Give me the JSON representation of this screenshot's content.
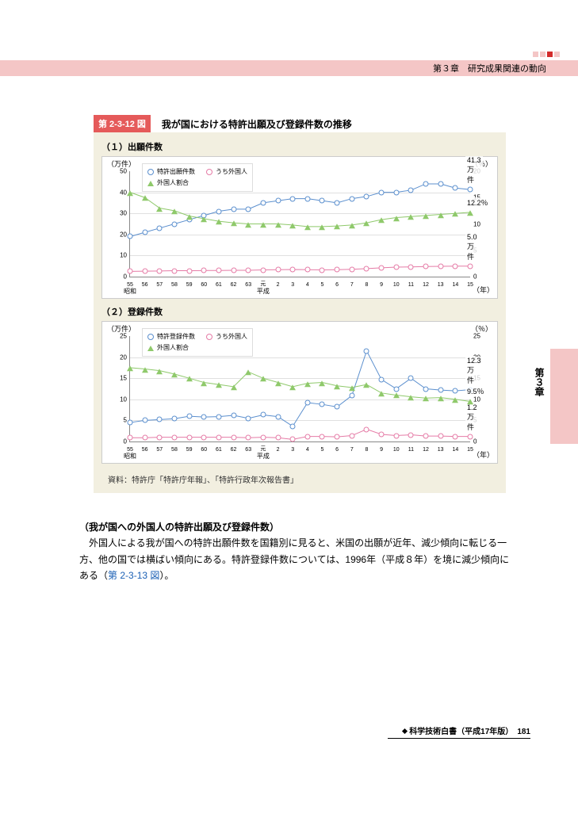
{
  "header": {
    "chapter": "第３章　研究成果関連の動向",
    "side_tab": "第３章"
  },
  "figure": {
    "number": "第 2-3-12 図",
    "title": "我が国における特許出願及び登録件数の推移",
    "bg": "#f2efe0",
    "source": "資料：特許庁「特許庁年報」、「特許行政年次報告書」",
    "x_axis": {
      "ticks": [
        "55",
        "56",
        "57",
        "58",
        "59",
        "60",
        "61",
        "62",
        "63",
        "元",
        "2",
        "3",
        "4",
        "5",
        "6",
        "7",
        "8",
        "9",
        "10",
        "11",
        "12",
        "13",
        "14",
        "15"
      ],
      "eras": [
        {
          "label": "昭和",
          "at": 0
        },
        {
          "label": "平成",
          "at": 9
        }
      ],
      "unit": "（年）"
    },
    "charts": [
      {
        "subtitle": "（１）出願件数",
        "left_unit": "（万件）",
        "right_unit": "（％）",
        "ylim_left": [
          0,
          50
        ],
        "ytick_left_step": 10,
        "ylim_right": [
          0,
          20
        ],
        "ytick_right_step": 5,
        "series": [
          {
            "name": "特許出願件数",
            "color": "#5b8fce",
            "marker": "circle",
            "axis": "left",
            "values": [
              19,
              21,
              23,
              25,
              27,
              29,
              31,
              32,
              32,
              35,
              36,
              37,
              37,
              36,
              35,
              37,
              38,
              40,
              40,
              41,
              44,
              44,
              42,
              41.3
            ],
            "end_label": "41.3万件"
          },
          {
            "name": "うち外国人",
            "color": "#e57ba6",
            "marker": "circle",
            "axis": "left",
            "values": [
              2.5,
              2.6,
              2.7,
              2.8,
              2.8,
              2.9,
              2.9,
              3,
              3,
              3.2,
              3.3,
              3.4,
              3.3,
              3.2,
              3.3,
              3.5,
              3.8,
              4.2,
              4.5,
              4.6,
              4.8,
              4.9,
              5.0,
              5.0
            ],
            "end_label": "5.0万件"
          },
          {
            "name": "外国人割合",
            "color": "#8fc96b",
            "marker": "triangle",
            "axis": "right",
            "values": [
              16,
              15,
              13,
              12.5,
              11.5,
              11,
              10.5,
              10.2,
              10,
              10,
              10,
              9.8,
              9.5,
              9.5,
              9.6,
              9.8,
              10.2,
              10.8,
              11.2,
              11.4,
              11.6,
              11.8,
              12,
              12.2
            ],
            "end_label": "12.2％"
          }
        ]
      },
      {
        "subtitle": "（２）登録件数",
        "left_unit": "（万件）",
        "right_unit": "（％）",
        "ylim_left": [
          0,
          25
        ],
        "ytick_left_step": 5,
        "ylim_right": [
          0,
          25
        ],
        "ytick_right_step": 5,
        "series": [
          {
            "name": "特許登録件数",
            "color": "#5b8fce",
            "marker": "circle",
            "axis": "left",
            "values": [
              4.5,
              5,
              5.2,
              5.4,
              6,
              5.8,
              5.9,
              6.2,
              5.5,
              6.3,
              5.9,
              3.6,
              9.2,
              8.8,
              8.2,
              10.9,
              21.5,
              14.7,
              12.5,
              15,
              12.5,
              12.2,
              12,
              12.3
            ],
            "end_label": "12.3万件"
          },
          {
            "name": "うち外国人",
            "color": "#e57ba6",
            "marker": "circle",
            "axis": "left",
            "values": [
              0.9,
              0.9,
              1,
              1,
              1,
              1,
              1,
              1,
              0.9,
              1,
              0.9,
              0.5,
              1.2,
              1.2,
              1.1,
              1.4,
              2.9,
              1.7,
              1.4,
              1.6,
              1.3,
              1.3,
              1.2,
              1.2
            ],
            "end_label": "1.2万件"
          },
          {
            "name": "外国人割合",
            "color": "#8fc96b",
            "marker": "triangle",
            "axis": "right",
            "values": [
              17.5,
              17.2,
              16.8,
              16,
              15,
              14,
              13.5,
              13,
              16.5,
              15,
              14,
              13,
              13.8,
              14,
              13.2,
              12.8,
              13.5,
              11.5,
              11,
              10.6,
              10.3,
              10.4,
              10,
              9.5
            ],
            "end_label": "9.5％"
          }
        ]
      }
    ]
  },
  "body": {
    "heading": "（我が国への外国人の特許出願及び登録件数）",
    "text_before_ref": "　外国人による我が国への特許出願件数を国籍別に見ると、米国の出願が近年、減少傾向に転じる一方、他の国では横ばい傾向にある。特許登録件数については、1996年（平成８年）を境に減少傾向にある（",
    "ref": "第 2-3-13 図",
    "text_after_ref": "）。"
  },
  "footer": {
    "text": "科学技術白書（平成17年版）",
    "page": "181"
  }
}
